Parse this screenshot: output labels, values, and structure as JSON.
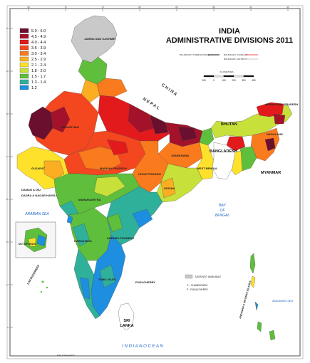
{
  "header": {
    "country": "INDIA",
    "title": "ADMINISTRATIVE DIVISIONS 2011",
    "boundary_international": "BOUNDARY, INTERNATIONAL",
    "boundary_state": "BOUNDARY, STATE/U.T.",
    "boundary_district": "BOUNDARY, DISTRICT",
    "scale_label": "KILOMETRES",
    "scale_ticks": [
      "100",
      "0",
      "100",
      "200",
      "300",
      "400"
    ]
  },
  "legend": {
    "items": [
      {
        "label": "5.0 - 6.0",
        "color": "#6b0f2e"
      },
      {
        "label": "4.5 - 4.9",
        "color": "#a3122a"
      },
      {
        "label": "4.0 - 4.4",
        "color": "#e31a1c"
      },
      {
        "label": "3.5 - 3.9",
        "color": "#f4471f"
      },
      {
        "label": "3.0 - 3.4",
        "color": "#fa7a1e"
      },
      {
        "label": "2.5 - 2.9",
        "color": "#fcae22"
      },
      {
        "label": "2.1 - 2.4",
        "color": "#fde12b"
      },
      {
        "label": "1.8 - 2.0",
        "color": "#c8e03a"
      },
      {
        "label": "1.5 - 1.7",
        "color": "#5fbf3c"
      },
      {
        "label": "1.3 - 1.4",
        "color": "#2fb09a"
      },
      {
        "label": "1.2",
        "color": "#1e8fe0"
      }
    ]
  },
  "places": {
    "jammu": "JAMMU AND KASHMIR",
    "china": "C H I N A",
    "nepal": "N E P A L",
    "bhutan": "BHUTAN",
    "bangladesh": "BANGLADESH",
    "myanmar": "MYANMAR",
    "rajasthan": "RAJASTHAN",
    "gujarat": "GUJARAT",
    "madhya_pradesh": "MADHYA PRADESH",
    "maharashtra": "MAHARASHTRA",
    "andhra_pradesh": "ANDHRA PRADESH",
    "karnataka": "KARNATAKA",
    "tamil_nadu": "TAMIL NADU",
    "odisha": "ODISHA",
    "jharkhand": "JHARKHAND",
    "west_bengal": "WEST BENGAL",
    "chhattisgarh": "CHHATTISGARH",
    "nagaland": "NAGALAND",
    "arunachal": "ARUNACHAL PRADESH",
    "daman": "DAMAN & DIU",
    "dadra": "DADRA & NAGAR HAVELI",
    "arabian_sea": "ARABIAN SEA",
    "bay_of_bengal": [
      "BAY",
      "OF",
      "BENGAL"
    ],
    "indian_ocean": "I N D I A N     O C E A N",
    "sri_lanka": [
      "SRI",
      "LANKA"
    ],
    "puducherry": "PUDUCHERRY",
    "lakshadweep": "LAKSHADWEEP",
    "andaman": "ANDAMAN SEA",
    "andaman_islands": "ANDAMAN & NICOBAR ISLANDS",
    "nct_delhi": "NCT OF DELHI"
  },
  "notes": {
    "data_na": "DATA NOT AVAILABLE",
    "chandigarh": "C - CHANDIGARH",
    "puducherry": "P - PUDUCHERRY"
  },
  "footer": {
    "left": "East of Greenwich"
  },
  "lon_ticks": [
    "68",
    "72",
    "76",
    "80",
    "84",
    "88",
    "92",
    "96"
  ],
  "lat_ticks": [
    "36",
    "32",
    "28",
    "24",
    "20",
    "16",
    "12",
    "8"
  ]
}
